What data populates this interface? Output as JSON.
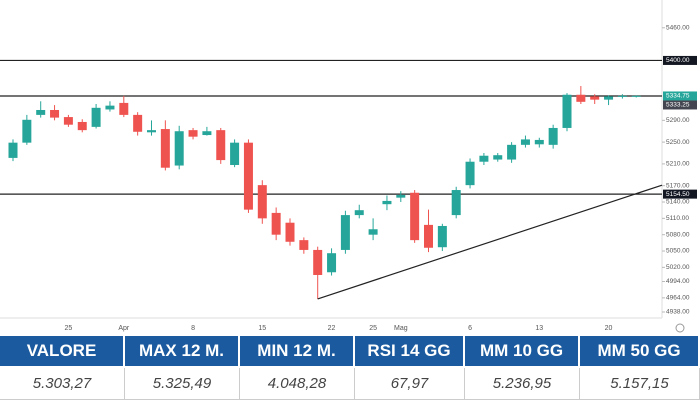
{
  "chart_data": {
    "type": "candlestick",
    "categories": [
      null,
      null,
      null,
      null,
      "25",
      null,
      null,
      null,
      "Apr",
      null,
      null,
      null,
      null,
      "8",
      null,
      null,
      null,
      null,
      "15",
      null,
      null,
      null,
      null,
      "22",
      null,
      null,
      "25",
      null,
      "Mag",
      null,
      null,
      null,
      null,
      "6",
      null,
      null,
      null,
      null,
      "13",
      null,
      null,
      null,
      null,
      "20",
      null,
      null
    ],
    "open": [
      5221,
      5249,
      5300,
      5309,
      5296,
      5287,
      5278,
      5310,
      5322,
      5300,
      5268,
      5274,
      5207,
      5272,
      5263,
      5272,
      5208,
      5249,
      5171,
      5120,
      5102,
      5070,
      5052,
      5011,
      5052,
      5116,
      5080,
      5136,
      5148,
      5157,
      5098,
      5057,
      5116,
      5171,
      5214,
      5218,
      5218,
      5245,
      5246,
      5245,
      5276,
      5337,
      5334,
      5328,
      5333,
      5334
    ],
    "high": [
      5255,
      5300,
      5325,
      5318,
      5300,
      5292,
      5320,
      5325,
      5335,
      5305,
      5290,
      5290,
      5280,
      5276,
      5278,
      5276,
      5255,
      5255,
      5180,
      5130,
      5110,
      5075,
      5058,
      5055,
      5124,
      5135,
      5110,
      5152,
      5160,
      5162,
      5126,
      5100,
      5168,
      5220,
      5230,
      5230,
      5250,
      5262,
      5258,
      5282,
      5340,
      5353,
      5338,
      5336,
      5338,
      5336
    ],
    "low": [
      5215,
      5245,
      5295,
      5290,
      5278,
      5268,
      5275,
      5306,
      5296,
      5262,
      5262,
      5198,
      5200,
      5255,
      5262,
      5210,
      5204,
      5120,
      5100,
      5070,
      5060,
      5045,
      4962,
      5005,
      5045,
      5110,
      5070,
      5125,
      5140,
      5065,
      5048,
      5050,
      5110,
      5165,
      5208,
      5214,
      5212,
      5240,
      5240,
      5238,
      5270,
      5320,
      5320,
      5318,
      5330,
      5332
    ],
    "close": [
      5249,
      5291,
      5309,
      5295,
      5282,
      5272,
      5313,
      5317,
      5300,
      5269,
      5272,
      5203,
      5270,
      5260,
      5270,
      5217,
      5249,
      5126,
      5110,
      5080,
      5067,
      5052,
      5006,
      5046,
      5116,
      5125,
      5090,
      5142,
      5153,
      5070,
      5056,
      5096,
      5162,
      5214,
      5225,
      5226,
      5245,
      5255,
      5254,
      5276,
      5337,
      5324,
      5328,
      5334,
      5335,
      5335
    ],
    "up_color": "#26a69a",
    "down_color": "#ef5350",
    "ylim": [
      4927,
      5511
    ],
    "yticks": [
      {
        "value": 5460,
        "label": "5460.00"
      },
      {
        "value": 5290,
        "label": "5290.00"
      },
      {
        "value": 5250,
        "label": "5250.00"
      },
      {
        "value": 5210,
        "label": "5210.00"
      },
      {
        "value": 5170,
        "label": "5170.00"
      },
      {
        "value": 5140,
        "label": "5140.00"
      },
      {
        "value": 5110,
        "label": "5110.00"
      },
      {
        "value": 5080,
        "label": "5080.00"
      },
      {
        "value": 5050,
        "label": "5050.00"
      },
      {
        "value": 5020,
        "label": "5020.00"
      },
      {
        "value": 4994,
        "label": "4994.00"
      },
      {
        "value": 4964,
        "label": "4964.00"
      },
      {
        "value": 4938,
        "label": "4938.00"
      }
    ],
    "levels": [
      {
        "value": 5400,
        "label": "5400.00"
      },
      {
        "value": 5334.75,
        "label": "5334.75"
      },
      {
        "value": 5154.5,
        "label": "5154.50"
      }
    ],
    "price_tags": [
      {
        "value": 5400,
        "label": "5400.00",
        "color": "#131722"
      },
      {
        "value": 5334.75,
        "label": "5334.75",
        "color": "#26a69a"
      },
      {
        "value": 5333.25,
        "label": "5333.25",
        "color": "#434651"
      },
      {
        "value": 5154.5,
        "label": "5154.50",
        "color": "#131722"
      }
    ],
    "trendline": [
      4962,
      5171
    ]
  },
  "table": {
    "headers": [
      "VALORE",
      "MAX 12 M.",
      "MIN 12 M.",
      "RSI 14 GG",
      "MM 10 GG",
      "MM 50 GG"
    ],
    "values": [
      "5.303,27",
      "5.325,49",
      "4.048,28",
      "67,97",
      "5.236,95",
      "5.157,15"
    ]
  }
}
